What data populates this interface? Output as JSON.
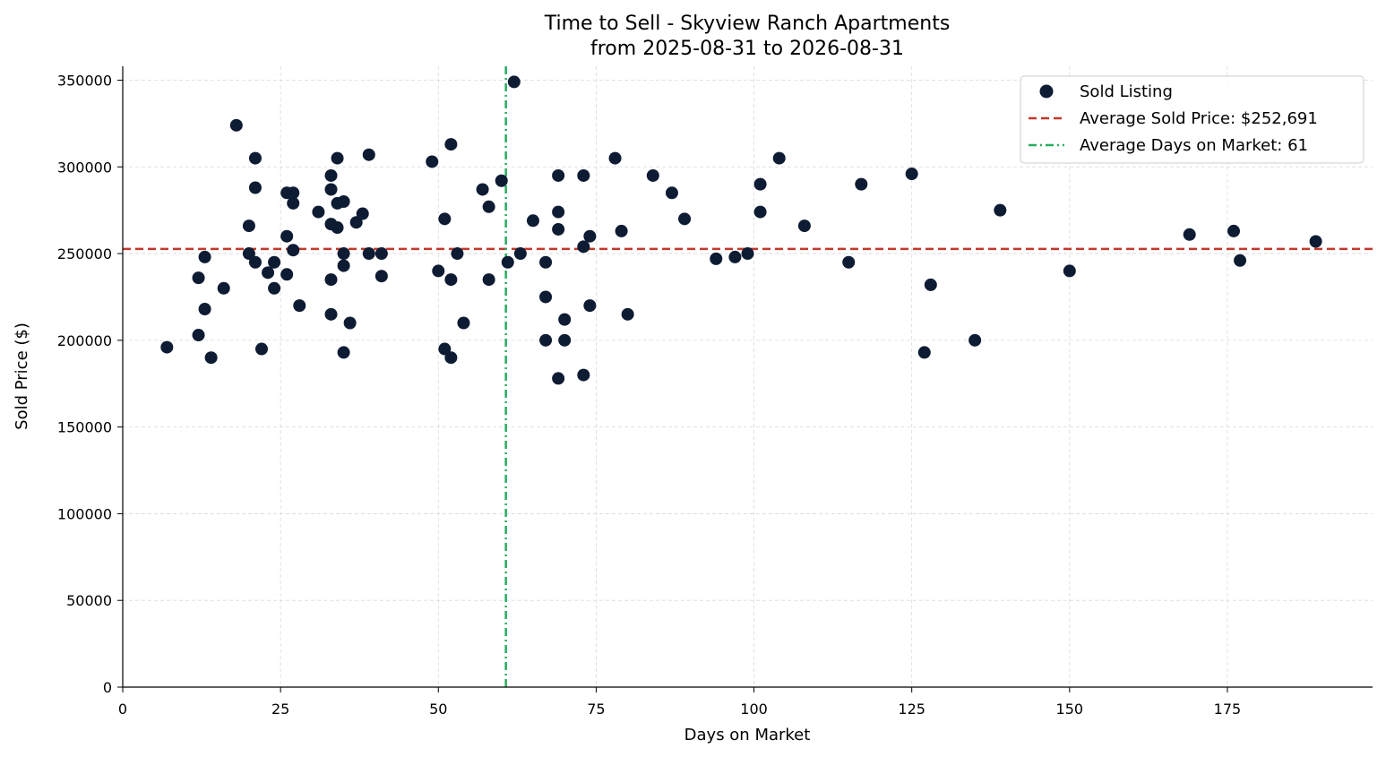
{
  "chart_data": {
    "type": "scatter",
    "title": "Time to Sell - Skyview Ranch Apartments",
    "subtitle": "from 2025-08-31 to 2026-08-31",
    "xlabel": "Days on Market",
    "ylabel": "Sold Price ($)",
    "xlim": [
      0,
      198
    ],
    "ylim": [
      0,
      358000
    ],
    "xticks": [
      0,
      25,
      50,
      75,
      100,
      125,
      150,
      175
    ],
    "yticks": [
      0,
      50000,
      100000,
      150000,
      200000,
      250000,
      300000,
      350000
    ],
    "xtick_labels": [
      "0",
      "25",
      "50",
      "75",
      "100",
      "125",
      "150",
      "175"
    ],
    "ytick_labels": [
      "0",
      "50000",
      "100000",
      "150000",
      "200000",
      "250000",
      "300000",
      "350000"
    ],
    "grid": true,
    "legend_position": "top-right",
    "colors": {
      "points": "#0d1b33",
      "avg_price": "#c0392b",
      "avg_days": "#27ae60"
    },
    "series": [
      {
        "name": "Sold Listing",
        "points": [
          [
            7,
            196000
          ],
          [
            12,
            236000
          ],
          [
            12,
            203000
          ],
          [
            13,
            248000
          ],
          [
            13,
            218000
          ],
          [
            14,
            190000
          ],
          [
            16,
            230000
          ],
          [
            18,
            324000
          ],
          [
            20,
            266000
          ],
          [
            20,
            250000
          ],
          [
            21,
            305000
          ],
          [
            21,
            288000
          ],
          [
            21,
            245000
          ],
          [
            22,
            195000
          ],
          [
            23,
            239000
          ],
          [
            24,
            245000
          ],
          [
            24,
            230000
          ],
          [
            26,
            285000
          ],
          [
            26,
            260000
          ],
          [
            26,
            238000
          ],
          [
            27,
            285000
          ],
          [
            27,
            279000
          ],
          [
            27,
            252000
          ],
          [
            28,
            220000
          ],
          [
            31,
            274000
          ],
          [
            33,
            295000
          ],
          [
            33,
            287000
          ],
          [
            33,
            267000
          ],
          [
            33,
            235000
          ],
          [
            33,
            215000
          ],
          [
            34,
            305000
          ],
          [
            34,
            279000
          ],
          [
            34,
            265000
          ],
          [
            35,
            280000
          ],
          [
            35,
            250000
          ],
          [
            35,
            243000
          ],
          [
            35,
            193000
          ],
          [
            36,
            210000
          ],
          [
            37,
            268000
          ],
          [
            38,
            273000
          ],
          [
            39,
            307000
          ],
          [
            39,
            250000
          ],
          [
            41,
            250000
          ],
          [
            41,
            237000
          ],
          [
            49,
            303000
          ],
          [
            50,
            240000
          ],
          [
            51,
            270000
          ],
          [
            51,
            195000
          ],
          [
            52,
            313000
          ],
          [
            52,
            235000
          ],
          [
            52,
            190000
          ],
          [
            53,
            250000
          ],
          [
            54,
            210000
          ],
          [
            57,
            287000
          ],
          [
            58,
            277000
          ],
          [
            58,
            235000
          ],
          [
            60,
            292000
          ],
          [
            61,
            245000
          ],
          [
            62,
            349000
          ],
          [
            63,
            250000
          ],
          [
            65,
            269000
          ],
          [
            67,
            245000
          ],
          [
            67,
            225000
          ],
          [
            67,
            200000
          ],
          [
            69,
            295000
          ],
          [
            69,
            274000
          ],
          [
            69,
            264000
          ],
          [
            69,
            178000
          ],
          [
            70,
            212000
          ],
          [
            70,
            200000
          ],
          [
            73,
            295000
          ],
          [
            73,
            254000
          ],
          [
            73,
            180000
          ],
          [
            74,
            260000
          ],
          [
            74,
            220000
          ],
          [
            78,
            305000
          ],
          [
            79,
            263000
          ],
          [
            80,
            215000
          ],
          [
            84,
            295000
          ],
          [
            87,
            285000
          ],
          [
            89,
            270000
          ],
          [
            94,
            247000
          ],
          [
            97,
            248000
          ],
          [
            99,
            250000
          ],
          [
            101,
            290000
          ],
          [
            101,
            274000
          ],
          [
            104,
            305000
          ],
          [
            108,
            266000
          ],
          [
            115,
            245000
          ],
          [
            117,
            290000
          ],
          [
            125,
            296000
          ],
          [
            127,
            193000
          ],
          [
            128,
            232000
          ],
          [
            135,
            200000
          ],
          [
            139,
            275000
          ],
          [
            150,
            240000
          ],
          [
            169,
            261000
          ],
          [
            176,
            263000
          ],
          [
            177,
            246000
          ],
          [
            189,
            257000
          ]
        ]
      }
    ],
    "reference_lines": [
      {
        "name": "Average Sold Price: $252,691",
        "orientation": "horizontal",
        "value": 252691,
        "style": "dashed"
      },
      {
        "name": "Average Days on Market: 61",
        "orientation": "vertical",
        "value": 60.7,
        "style": "dash-dot"
      }
    ]
  }
}
